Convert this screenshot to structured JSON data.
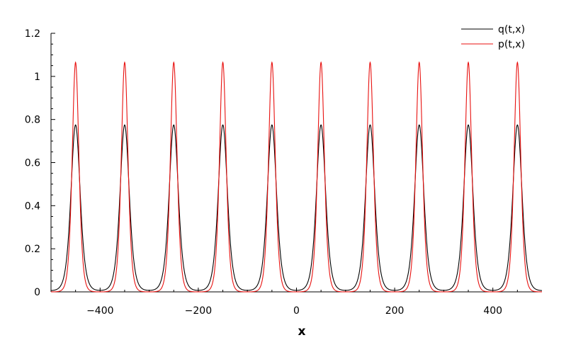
{
  "chart_data": {
    "type": "line",
    "title": "",
    "xlabel": "x",
    "ylabel": "",
    "xlim": [
      -500,
      500
    ],
    "ylim": [
      0,
      1.2
    ],
    "x_ticks": [
      -400,
      -200,
      0,
      200,
      400
    ],
    "x_tick_labels": [
      "−400",
      "−200",
      "0",
      "200",
      "400"
    ],
    "y_ticks": [
      0,
      0.2,
      0.4,
      0.6,
      0.8,
      1,
      1.2
    ],
    "y_tick_labels": [
      "0",
      "0.2",
      "0.4",
      "0.6",
      "0.8",
      "1",
      "1.2"
    ],
    "grid": false,
    "legend_position": "top-right",
    "peak_x": [
      -450,
      -350,
      -250,
      -150,
      -50,
      50,
      150,
      250,
      350,
      450
    ],
    "series": [
      {
        "name": "q(t,x)",
        "color": "#000000",
        "peak_y": 0.775,
        "trough_y": 0.005,
        "half_width_at_half_max": 11
      },
      {
        "name": "p(t,x)",
        "color": "#e8110f",
        "peak_y": 1.065,
        "trough_y": 0.0,
        "half_width_at_half_max": 8
      }
    ]
  }
}
